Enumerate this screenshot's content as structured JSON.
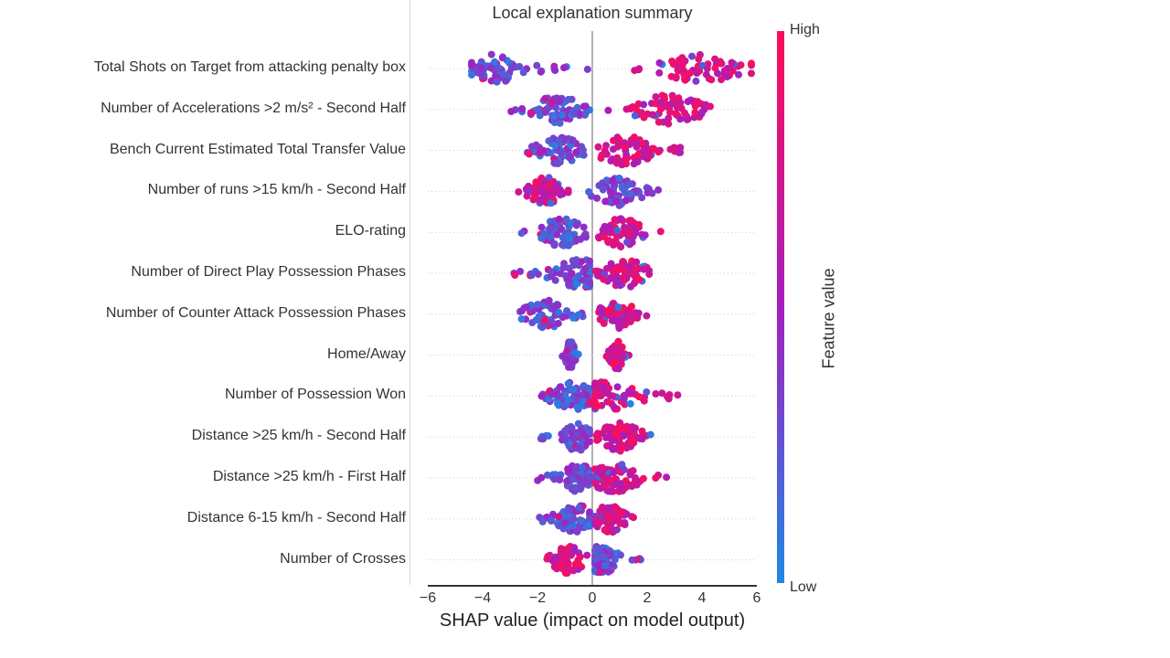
{
  "chart_data": {
    "type": "scatter",
    "subtype": "shap-beeswarm",
    "title": "Local explanation summary",
    "xlabel": "SHAP value (impact on model output)",
    "xlim": [
      -6,
      6
    ],
    "xticks": [
      "−6",
      "−4",
      "−2",
      "0",
      "2",
      "4",
      "6"
    ],
    "colorbar": {
      "high_label": "High",
      "low_label": "Low",
      "title": "Feature value",
      "high_color": "#ff0d57",
      "low_color": "#1e88e5"
    },
    "features": [
      {
        "name": "Total Shots on Target from attacking penalty box",
        "negative": {
          "min": -4.4,
          "max": -0.1,
          "peak": -3.5,
          "width": 1.1
        },
        "positive": {
          "min": 1.2,
          "max": 5.8,
          "peak": 4.0,
          "width": 1.6
        },
        "low_side": "negative"
      },
      {
        "name": "Number of Accelerations >2 m/s² - Second Half",
        "negative": {
          "min": -3.1,
          "max": -0.1,
          "peak": -1.2,
          "width": 1.0
        },
        "positive": {
          "min": 0.1,
          "max": 4.3,
          "peak": 2.8,
          "width": 1.3
        },
        "low_side": "negative"
      },
      {
        "name": "Bench Current Estimated Total Transfer Value",
        "negative": {
          "min": -2.4,
          "max": -0.1,
          "peak": -1.2,
          "width": 0.8
        },
        "positive": {
          "min": 0.1,
          "max": 3.3,
          "peak": 1.2,
          "width": 1.1
        },
        "low_side": "negative"
      },
      {
        "name": "Number of runs >15 km/h - Second Half",
        "negative": {
          "min": -2.7,
          "max": -0.7,
          "peak": -1.7,
          "width": 0.6
        },
        "positive": {
          "min": -0.3,
          "max": 2.5,
          "peak": 1.0,
          "width": 0.9
        },
        "low_side": "positive"
      },
      {
        "name": "ELO-rating",
        "negative": {
          "min": -2.6,
          "max": -0.1,
          "peak": -1.1,
          "width": 0.8
        },
        "positive": {
          "min": 0.1,
          "max": 2.6,
          "peak": 1.0,
          "width": 0.9
        },
        "low_side": "negative"
      },
      {
        "name": "Number of Direct Play Possession Phases",
        "negative": {
          "min": -3.2,
          "max": -0.1,
          "peak": -0.4,
          "width": 1.1
        },
        "positive": {
          "min": 0.1,
          "max": 2.3,
          "peak": 1.2,
          "width": 0.8
        },
        "low_side": "negative"
      },
      {
        "name": "Number of Counter Attack Possession Phases",
        "negative": {
          "min": -2.8,
          "max": -0.1,
          "peak": -1.7,
          "width": 0.8
        },
        "positive": {
          "min": 0.1,
          "max": 2.0,
          "peak": 0.9,
          "width": 0.7
        },
        "low_side": "negative"
      },
      {
        "name": "Home/Away",
        "negative": {
          "min": -1.2,
          "max": -0.5,
          "peak": -0.8,
          "width": 0.2
        },
        "positive": {
          "min": 0.4,
          "max": 1.4,
          "peak": 0.9,
          "width": 0.25
        },
        "low_side": "negative"
      },
      {
        "name": "Number of Possession Won",
        "negative": {
          "min": -2.3,
          "max": -0.1,
          "peak": -0.7,
          "width": 0.8
        },
        "positive": {
          "min": 0.1,
          "max": 3.3,
          "peak": 0.5,
          "width": 1.2
        },
        "low_side": "negative"
      },
      {
        "name": "Distance >25 km/h - Second Half",
        "negative": {
          "min": -1.9,
          "max": -0.1,
          "peak": -0.6,
          "width": 0.6
        },
        "positive": {
          "min": 0.1,
          "max": 2.2,
          "peak": 1.0,
          "width": 0.8
        },
        "low_side": "negative"
      },
      {
        "name": "Distance >25 km/h - First Half",
        "negative": {
          "min": -2.0,
          "max": -0.1,
          "peak": -0.5,
          "width": 0.6
        },
        "positive": {
          "min": 0.1,
          "max": 2.9,
          "peak": 0.8,
          "width": 1.0
        },
        "low_side": "negative"
      },
      {
        "name": "Distance 6-15 km/h - Second Half",
        "negative": {
          "min": -2.1,
          "max": -0.1,
          "peak": -0.6,
          "width": 0.7
        },
        "positive": {
          "min": 0.1,
          "max": 1.7,
          "peak": 0.6,
          "width": 0.6
        },
        "low_side": "negative"
      },
      {
        "name": "Number of Crosses",
        "negative": {
          "min": -1.7,
          "max": -0.1,
          "peak": -0.9,
          "width": 0.6
        },
        "positive": {
          "min": 0.1,
          "max": 1.8,
          "peak": 0.3,
          "width": 0.7
        },
        "low_side": "positive"
      }
    ]
  }
}
